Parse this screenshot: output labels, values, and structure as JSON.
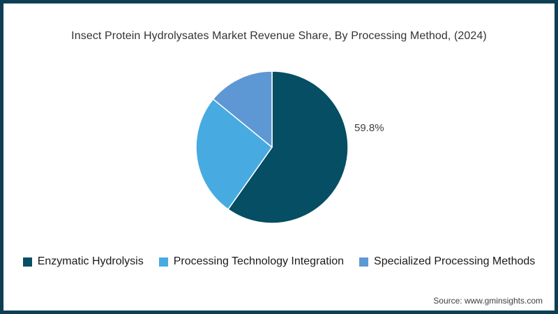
{
  "title": "Insect Protein Hydrolysates Market Revenue Share, By Processing Method, (2024)",
  "source": "Source: www.gminsights.com",
  "colors": {
    "frame_border": "#0e3e54",
    "background": "#ffffff",
    "title_text": "#333333",
    "legend_text": "#1a1a1a",
    "annotation_text": "#404040",
    "slice_separator": "#ffffff"
  },
  "chart_data": {
    "type": "pie",
    "title": "Insect Protein Hydrolysates Market Revenue Share, By Processing Method, (2024)",
    "unit": "%",
    "start_angle_deg": -90,
    "direction": "clockwise",
    "legend_position": "bottom",
    "slices": [
      {
        "label": "Enzymatic Hydrolysis",
        "value": 59.8,
        "data_label": "59.8%",
        "color": "#054e63"
      },
      {
        "label": "Processing Technology Integration",
        "value": 26.1,
        "data_label": "",
        "color": "#47abe1"
      },
      {
        "label": "Specialized Processing Methods",
        "value": 14.1,
        "data_label": "",
        "color": "#5e98d4"
      }
    ]
  }
}
